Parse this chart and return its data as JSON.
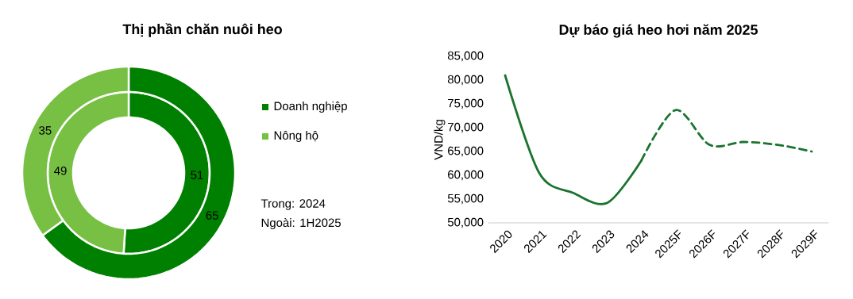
{
  "chart_data": [
    {
      "type": "donut",
      "title": "Thị phần chăn nuôi heo",
      "categories": [
        "Doanh nghiệp",
        "Nông hộ"
      ],
      "colors": [
        "#008000",
        "#77c043"
      ],
      "series": [
        {
          "values": [
            51,
            49
          ]
        },
        {
          "values": [
            65,
            35
          ]
        }
      ],
      "data_labels": true,
      "legend": "right",
      "annotations": [
        "Trong: 2024",
        "Ngoài: 1H2025"
      ]
    },
    {
      "type": "line",
      "title": "Dự báo giá heo hơi năm 2025",
      "ylabel": "VND/kg",
      "categories": [
        "2020",
        "2021",
        "2022",
        "2023",
        "2024",
        "2025F",
        "2026F",
        "2027F",
        "2028F",
        "2029F"
      ],
      "series": [
        {
          "color": "#1a7430",
          "line_style": "solid",
          "values": [
            81000,
            60500,
            56300,
            54200,
            63100,
            null,
            null,
            null,
            null,
            null
          ]
        },
        {
          "color": "#1a7430",
          "line_style": "dashed",
          "values": [
            null,
            null,
            null,
            null,
            63100,
            73700,
            66400,
            67000,
            66400,
            65000
          ]
        }
      ],
      "ylim": [
        50000,
        85000
      ],
      "yticks": [
        {
          "value": 50000,
          "label": "50,000"
        },
        {
          "value": 55000,
          "label": "55,000"
        },
        {
          "value": 60000,
          "label": "60,000"
        },
        {
          "value": 65000,
          "label": "65,000"
        },
        {
          "value": 70000,
          "label": "70,000"
        },
        {
          "value": 75000,
          "label": "75,000"
        },
        {
          "value": 80000,
          "label": "80,000"
        },
        {
          "value": 85000,
          "label": "85,000"
        }
      ],
      "grid": false,
      "legend": false,
      "marker": "none"
    }
  ]
}
